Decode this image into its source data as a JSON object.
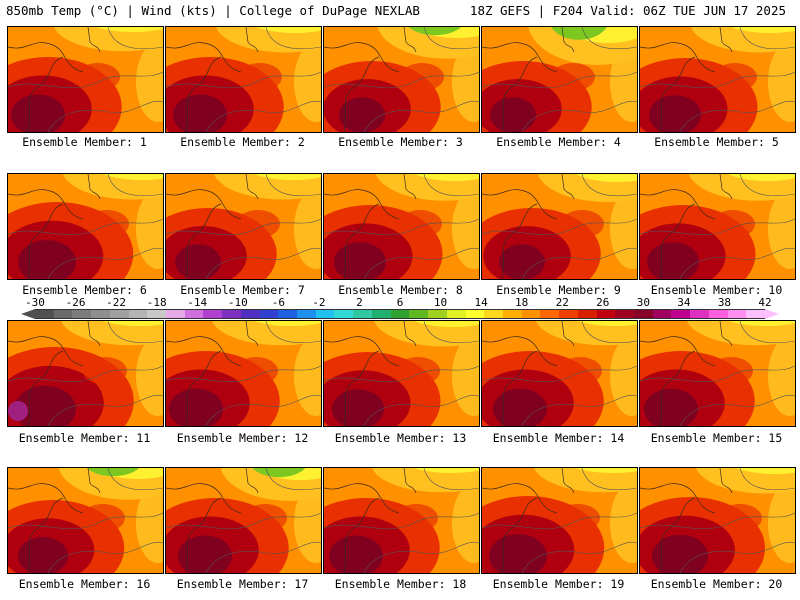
{
  "header": {
    "left": "850mb Temp (°C) | Wind (kts) | College of DuPage NEXLAB",
    "right": "18Z GEFS | F204 Valid: 06Z TUE JUN 17 2025"
  },
  "members": [
    {
      "label": "Ensemble Member: 1",
      "warm": 0.75,
      "cool": 0.05
    },
    {
      "label": "Ensemble Member: 2",
      "warm": 0.75,
      "cool": 0.1
    },
    {
      "label": "Ensemble Member: 3",
      "warm": 0.55,
      "cool": 0.35
    },
    {
      "label": "Ensemble Member: 4",
      "warm": 0.55,
      "cool": 0.6
    },
    {
      "label": "Ensemble Member: 5",
      "warm": 0.7,
      "cool": 0.1
    },
    {
      "label": "Ensemble Member: 6",
      "warm": 0.85,
      "cool": 0.1
    },
    {
      "label": "Ensemble Member: 7",
      "warm": 0.55,
      "cool": 0.1
    },
    {
      "label": "Ensemble Member: 8",
      "warm": 0.7,
      "cool": 0.15
    },
    {
      "label": "Ensemble Member: 9",
      "warm": 0.55,
      "cool": 0.2
    },
    {
      "label": "Ensemble Member: 10",
      "warm": 0.7,
      "cool": 0.15
    },
    {
      "label": "Ensemble Member: 11",
      "warm": 0.95,
      "cool": 0.05
    },
    {
      "label": "Ensemble Member: 12",
      "warm": 0.75,
      "cool": 0.05
    },
    {
      "label": "Ensemble Member: 13",
      "warm": 0.7,
      "cool": 0.1
    },
    {
      "label": "Ensemble Member: 14",
      "warm": 0.75,
      "cool": 0.05
    },
    {
      "label": "Ensemble Member: 15",
      "warm": 0.75,
      "cool": 0.05
    },
    {
      "label": "Ensemble Member: 16",
      "warm": 0.65,
      "cool": 0.35
    },
    {
      "label": "Ensemble Member: 17",
      "warm": 0.75,
      "cool": 0.4
    },
    {
      "label": "Ensemble Member: 18",
      "warm": 0.75,
      "cool": 0.05
    },
    {
      "label": "Ensemble Member: 19",
      "warm": 0.85,
      "cool": 0.05
    },
    {
      "label": "Ensemble Member: 20",
      "warm": 0.8,
      "cool": 0.1
    }
  ],
  "colorbar": {
    "ticks": [
      "-30",
      "-26",
      "-22",
      "-18",
      "-14",
      "-10",
      "-6",
      "-2",
      "2",
      "6",
      "10",
      "14",
      "18",
      "22",
      "26",
      "30",
      "34",
      "38",
      "42"
    ],
    "colors": [
      "#505050",
      "#6a6a6a",
      "#7c7c7c",
      "#8e8e8e",
      "#a0a0a0",
      "#b4b4b4",
      "#c8c8c8",
      "#e6a8e6",
      "#d070e0",
      "#b040d0",
      "#8030c0",
      "#5030c0",
      "#3040d0",
      "#2060e0",
      "#2090f0",
      "#20c0f0",
      "#30d8d8",
      "#30c8a0",
      "#20b070",
      "#30a030",
      "#60b820",
      "#a0d020",
      "#e0f020",
      "#ffff30",
      "#ffd820",
      "#ffb000",
      "#ff9000",
      "#ff6800",
      "#f04000",
      "#d82000",
      "#c00010",
      "#a00020",
      "#880028",
      "#a00060",
      "#c00090",
      "#e030c0",
      "#ff60e0",
      "#ff90f0",
      "#ffc0ff"
    ],
    "colors_note": ""
  },
  "palette": {
    "green": "#7cc820",
    "yellow": "#fff030",
    "lightorange": "#ffc020",
    "orange": "#ff9000",
    "red": "#e83000",
    "darkred": "#b00010",
    "maroon": "#800020",
    "magenta": "#a02080"
  }
}
